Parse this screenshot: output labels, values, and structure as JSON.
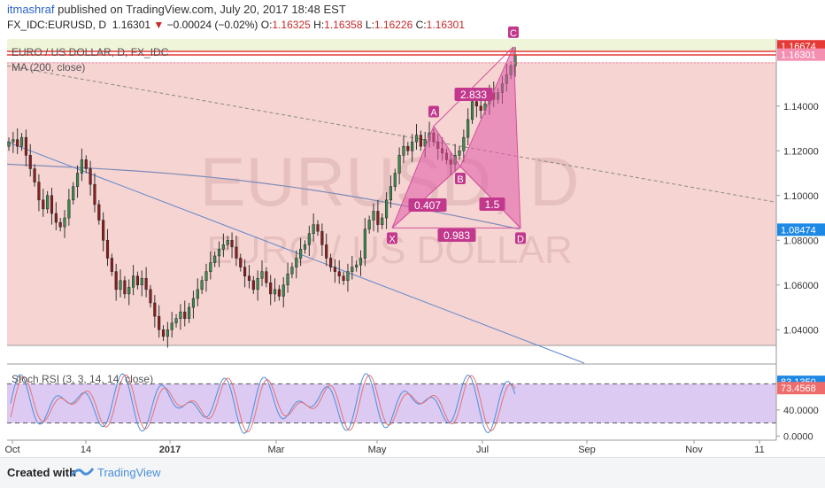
{
  "header": {
    "user": "itmashraf",
    "published_text": "published on TradingView.com, July 20, 2017 18:48 EST",
    "symbol": "FX_IDC:EURUSD, D",
    "last": "1.16301",
    "arrow": "▼",
    "change": "−0.00024 (−0.02%)",
    "o_label": "O:",
    "o_value": "1.16325",
    "h_label": "H:",
    "h_value": "1.16358",
    "l_label": "L:",
    "l_value": "1.16226",
    "c_label": "C:",
    "c_value": "1.16301"
  },
  "footer": {
    "created_with": "Created with",
    "brand": "TradingView"
  },
  "chart_data": {
    "type": "candlestick",
    "watermark_symbol": "EURUSD, D",
    "watermark_name": "EURO / US DOLLAR",
    "main_legend": "EURO / US DOLLAR, D, FX_IDC",
    "ma_legend": "MA (200, close)",
    "price_axis": {
      "ticks": [
        "1.14000",
        "1.12000",
        "1.10000",
        "1.08000",
        "1.06000",
        "1.04000"
      ],
      "range": [
        1.033,
        1.17
      ]
    },
    "x_axis": {
      "ticks": [
        "Oct",
        "14",
        "2017",
        "Mar",
        "May",
        "Jul",
        "Sep",
        "Nov",
        "11"
      ]
    },
    "price_labels": [
      {
        "value": "1.16674",
        "color": "#e53935"
      },
      {
        "value": "1.16301",
        "color": "#f48fb1"
      },
      {
        "value": "1.08474",
        "color": "#1e88e5"
      }
    ],
    "harmonic_pattern": {
      "points": [
        {
          "label": "X",
          "price": 1.0855
        },
        {
          "label": "A",
          "price": 1.131
        },
        {
          "label": "B",
          "price": 1.113
        },
        {
          "label": "C",
          "price": 1.1665
        },
        {
          "label": "D",
          "price": 1.0855
        }
      ],
      "ratios": [
        "0.407",
        "2.833",
        "1.5",
        "0.983"
      ]
    },
    "closes": [
      1.124,
      1.125,
      1.122,
      1.126,
      1.118,
      1.112,
      1.106,
      1.098,
      1.094,
      1.1,
      1.092,
      1.088,
      1.086,
      1.09,
      1.098,
      1.104,
      1.11,
      1.116,
      1.112,
      1.105,
      1.096,
      1.089,
      1.08,
      1.072,
      1.066,
      1.058,
      1.062,
      1.056,
      1.059,
      1.064,
      1.06,
      1.063,
      1.058,
      1.052,
      1.046,
      1.04,
      1.037,
      1.04,
      1.043,
      1.045,
      1.048,
      1.045,
      1.05,
      1.054,
      1.058,
      1.062,
      1.066,
      1.07,
      1.073,
      1.076,
      1.078,
      1.08,
      1.077,
      1.072,
      1.068,
      1.064,
      1.062,
      1.058,
      1.063,
      1.066,
      1.061,
      1.056,
      1.058,
      1.055,
      1.06,
      1.065,
      1.068,
      1.072,
      1.076,
      1.078,
      1.083,
      1.087,
      1.084,
      1.078,
      1.072,
      1.068,
      1.066,
      1.064,
      1.062,
      1.066,
      1.068,
      1.069,
      1.072,
      1.085,
      1.089,
      1.093,
      1.087,
      1.09,
      1.098,
      1.104,
      1.11,
      1.118,
      1.122,
      1.12,
      1.124,
      1.127,
      1.122,
      1.125,
      1.128,
      1.124,
      1.121,
      1.119,
      1.116,
      1.114,
      1.118,
      1.12,
      1.126,
      1.134,
      1.142,
      1.14,
      1.138,
      1.141,
      1.146,
      1.143,
      1.146,
      1.15,
      1.154,
      1.158,
      1.163
    ],
    "ma200": {
      "start": 1.114,
      "end": 1.085
    },
    "trendlines": [
      {
        "from": 1.124,
        "to": 1.033,
        "color": "#5d87c9"
      },
      {
        "from": 1.158,
        "to": 1.097,
        "color": "#888888"
      }
    ],
    "indicator": {
      "legend": "Stoch RSI (3, 3, 14, 14, close)",
      "ticks": [
        "40.0000",
        "0.0000"
      ],
      "range": [
        -5,
        105
      ],
      "upper": 80,
      "lower": 20,
      "labels": [
        {
          "value": "83.1350",
          "color": "#1e88e5"
        },
        {
          "value": "73.4568",
          "color": "#ef6c6c"
        }
      ]
    }
  }
}
